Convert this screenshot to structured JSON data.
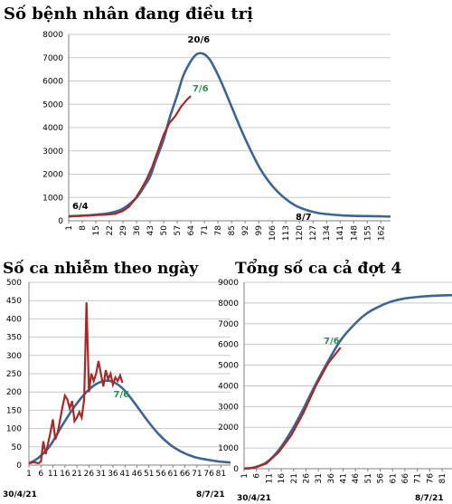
{
  "chart_data": [
    {
      "type": "line",
      "title": "Số bệnh nhân đang điều trị",
      "ylim": [
        0,
        8000
      ],
      "yticks": [
        0,
        1000,
        2000,
        3000,
        4000,
        5000,
        6000,
        7000,
        8000
      ],
      "x_tick_labels": [
        "1",
        "8",
        "15",
        "22",
        "29",
        "36",
        "43",
        "50",
        "57",
        "64",
        "71",
        "78",
        "85",
        "92",
        "99",
        "106",
        "113",
        "120",
        "127",
        "134",
        "141",
        "148",
        "155",
        "162"
      ],
      "xlim": [
        1,
        167
      ],
      "annotations": [
        "20/6",
        "7/6",
        "6/4",
        "8/7"
      ],
      "series": [
        {
          "x": [
            1,
            8,
            15,
            22,
            29,
            36,
            40,
            43,
            46,
            50,
            53,
            57,
            60,
            64,
            67,
            70,
            73,
            76,
            80,
            85,
            90,
            95,
            100,
            106,
            112,
            118,
            124,
            130,
            136,
            142,
            148,
            155,
            162,
            167
          ],
          "values": [
            200,
            220,
            260,
            330,
            520,
            1000,
            1480,
            1900,
            2600,
            3500,
            4400,
            5400,
            6200,
            6850,
            7150,
            7180,
            7000,
            6600,
            5900,
            4900,
            3900,
            3000,
            2200,
            1500,
            1000,
            650,
            450,
            330,
            270,
            230,
            210,
            200,
            190,
            180
          ]
        },
        {
          "x": [
            1,
            5,
            10,
            15,
            20,
            25,
            29,
            32,
            35,
            38,
            41,
            44,
            47,
            50,
            53,
            56,
            59,
            62,
            64
          ],
          "values": [
            180,
            200,
            220,
            250,
            260,
            300,
            420,
            600,
            900,
            1300,
            1750,
            2300,
            3000,
            3700,
            4200,
            4500,
            4900,
            5200,
            5350
          ]
        }
      ]
    },
    {
      "type": "line",
      "title": "Số ca nhiễm theo ngày",
      "ylim": [
        0,
        500
      ],
      "yticks": [
        0,
        50,
        100,
        150,
        200,
        250,
        300,
        350,
        400,
        450,
        500
      ],
      "x_tick_labels": [
        "1",
        "6",
        "11",
        "16",
        "21",
        "26",
        "31",
        "36",
        "41",
        "46",
        "51",
        "56",
        "61",
        "66",
        "71",
        "76",
        "81"
      ],
      "xlim": [
        1,
        85
      ],
      "date_labels": [
        "30/4/21",
        "8/7/21"
      ],
      "annotations": [
        "7/6"
      ],
      "series": [
        {
          "x": [
            1,
            5,
            10,
            15,
            20,
            25,
            30,
            35,
            40,
            45,
            50,
            55,
            60,
            65,
            70,
            75,
            80,
            85
          ],
          "values": [
            5,
            20,
            55,
            110,
            160,
            200,
            225,
            230,
            210,
            170,
            125,
            85,
            55,
            35,
            22,
            15,
            10,
            7
          ]
        },
        {
          "x": [
            1,
            3,
            5,
            6,
            7,
            8,
            10,
            11,
            12,
            13,
            15,
            16,
            17,
            18,
            19,
            20,
            21,
            22,
            23,
            24,
            25,
            26,
            27,
            28,
            29,
            30,
            31,
            32,
            33,
            34,
            35,
            36,
            37,
            38,
            39,
            40
          ],
          "values": [
            5,
            8,
            5,
            10,
            65,
            30,
            90,
            125,
            70,
            90,
            160,
            190,
            180,
            155,
            175,
            120,
            130,
            145,
            130,
            180,
            445,
            200,
            250,
            230,
            250,
            285,
            250,
            215,
            260,
            235,
            250,
            220,
            240,
            230,
            245,
            225
          ]
        }
      ]
    },
    {
      "type": "line",
      "title": "Tổng số ca cả đợt 4",
      "ylim": [
        0,
        9000
      ],
      "yticks": [
        0,
        1000,
        2000,
        3000,
        4000,
        5000,
        6000,
        7000,
        8000,
        9000
      ],
      "x_tick_labels": [
        "1",
        "6",
        "11",
        "16",
        "21",
        "26",
        "31",
        "36",
        "41",
        "46",
        "51",
        "56",
        "61",
        "66",
        "71",
        "76",
        "81"
      ],
      "xlim": [
        1,
        85
      ],
      "date_labels": [
        "30/4/21",
        "8/7/21"
      ],
      "annotations": [
        "7/6"
      ],
      "series": [
        {
          "x": [
            1,
            5,
            10,
            15,
            20,
            25,
            30,
            35,
            40,
            45,
            50,
            55,
            60,
            65,
            70,
            75,
            80,
            85
          ],
          "values": [
            10,
            60,
            300,
            900,
            1800,
            2900,
            4100,
            5200,
            6200,
            6900,
            7450,
            7800,
            8050,
            8200,
            8280,
            8330,
            8360,
            8380
          ]
        },
        {
          "x": [
            1,
            5,
            10,
            15,
            20,
            25,
            30,
            35,
            40
          ],
          "values": [
            10,
            40,
            250,
            800,
            1600,
            2700,
            4000,
            5100,
            5850
          ]
        }
      ]
    }
  ]
}
